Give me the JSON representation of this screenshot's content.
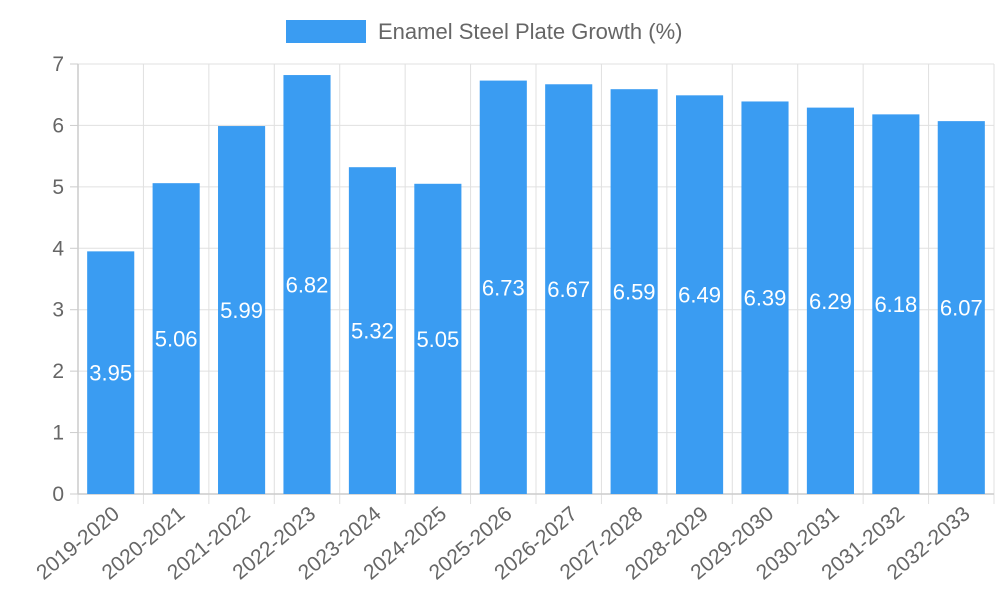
{
  "chart_data": {
    "type": "bar",
    "title": "",
    "xlabel": "",
    "ylabel": "",
    "ylim": [
      0,
      7
    ],
    "y_ticks": [
      "0",
      "1",
      "2",
      "3",
      "4",
      "5",
      "6",
      "7"
    ],
    "categories": [
      "2019-2020",
      "2020-2021",
      "2021-2022",
      "2022-2023",
      "2023-2024",
      "2024-2025",
      "2025-2026",
      "2026-2027",
      "2027-2028",
      "2028-2029",
      "2029-2030",
      "2030-2031",
      "2031-2032",
      "2032-2033"
    ],
    "series": [
      {
        "name": "Enamel Steel Plate Growth (%)",
        "color": "#3a9cf2",
        "values": [
          3.95,
          5.06,
          5.99,
          6.82,
          5.32,
          5.05,
          6.73,
          6.67,
          6.59,
          6.49,
          6.39,
          6.29,
          6.18,
          6.07
        ],
        "labels": [
          "3.95",
          "5.06",
          "5.99",
          "6.82",
          "5.32",
          "5.05",
          "6.73",
          "6.67",
          "6.59",
          "6.49",
          "6.39",
          "6.29",
          "6.18",
          "6.07"
        ]
      }
    ],
    "legend_position": "top-center",
    "grid": true
  }
}
